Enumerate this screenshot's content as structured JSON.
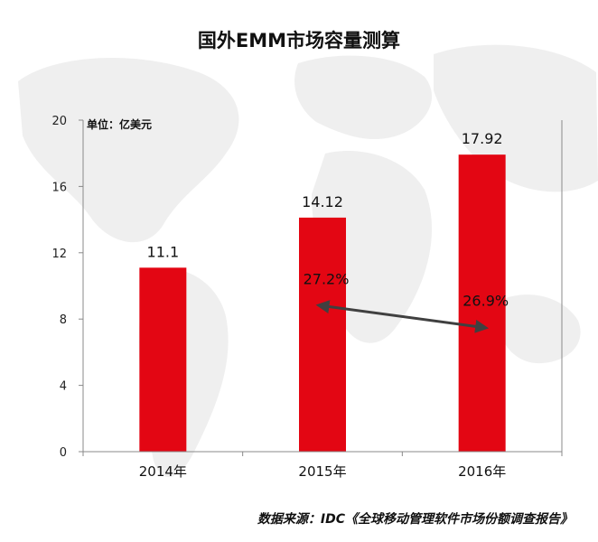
{
  "colors": {
    "bar": "#e30613",
    "growth_line": "#404040",
    "axis": "#888888",
    "map": "#ececec"
  },
  "chart_data": {
    "type": "bar",
    "title": "国外EMM市场容量测算",
    "unit_label": "单位：亿美元",
    "categories": [
      "2014年",
      "2015年",
      "2016年"
    ],
    "values": [
      11.1,
      14.12,
      17.92
    ],
    "value_labels": [
      "11.1",
      "14.12",
      "17.92"
    ],
    "ylim": [
      0,
      20
    ],
    "yticks": [
      0,
      4,
      8,
      12,
      16,
      20
    ],
    "growth_line": {
      "points": [
        {
          "category": "2015年",
          "value": 8.8,
          "label": "27.2%"
        },
        {
          "category": "2016年",
          "value": 7.5,
          "label": "26.9%"
        }
      ]
    },
    "grid": false,
    "source": "数据来源：IDC《全球移动管理软件市场份额调查报告》"
  }
}
